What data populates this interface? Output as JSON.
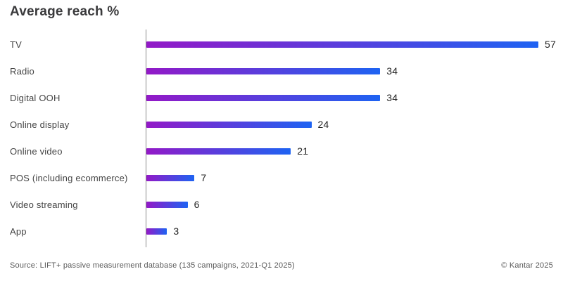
{
  "title": "Average reach %",
  "chart_data": {
    "type": "bar",
    "orientation": "horizontal",
    "title": "Average reach %",
    "categories": [
      "TV",
      "Radio",
      "Digital OOH",
      "Online display",
      "Online video",
      "POS (including ecommerce)",
      "Video streaming",
      "App"
    ],
    "values": [
      57,
      34,
      34,
      24,
      21,
      7,
      6,
      3
    ],
    "xlabel": "",
    "ylabel": "",
    "xlim": [
      0,
      58
    ],
    "grid": false,
    "legend": "none",
    "value_labels_shown": true,
    "bar_gradient_start": "#9319c7",
    "bar_gradient_end": "#1e63f2",
    "axis_line_color": "#8c8c8c"
  },
  "footer": {
    "source": "Source: LIFT+ passive measurement database (135 campaigns, 2021-Q1 2025)",
    "copyright": "© Kantar 2025"
  }
}
